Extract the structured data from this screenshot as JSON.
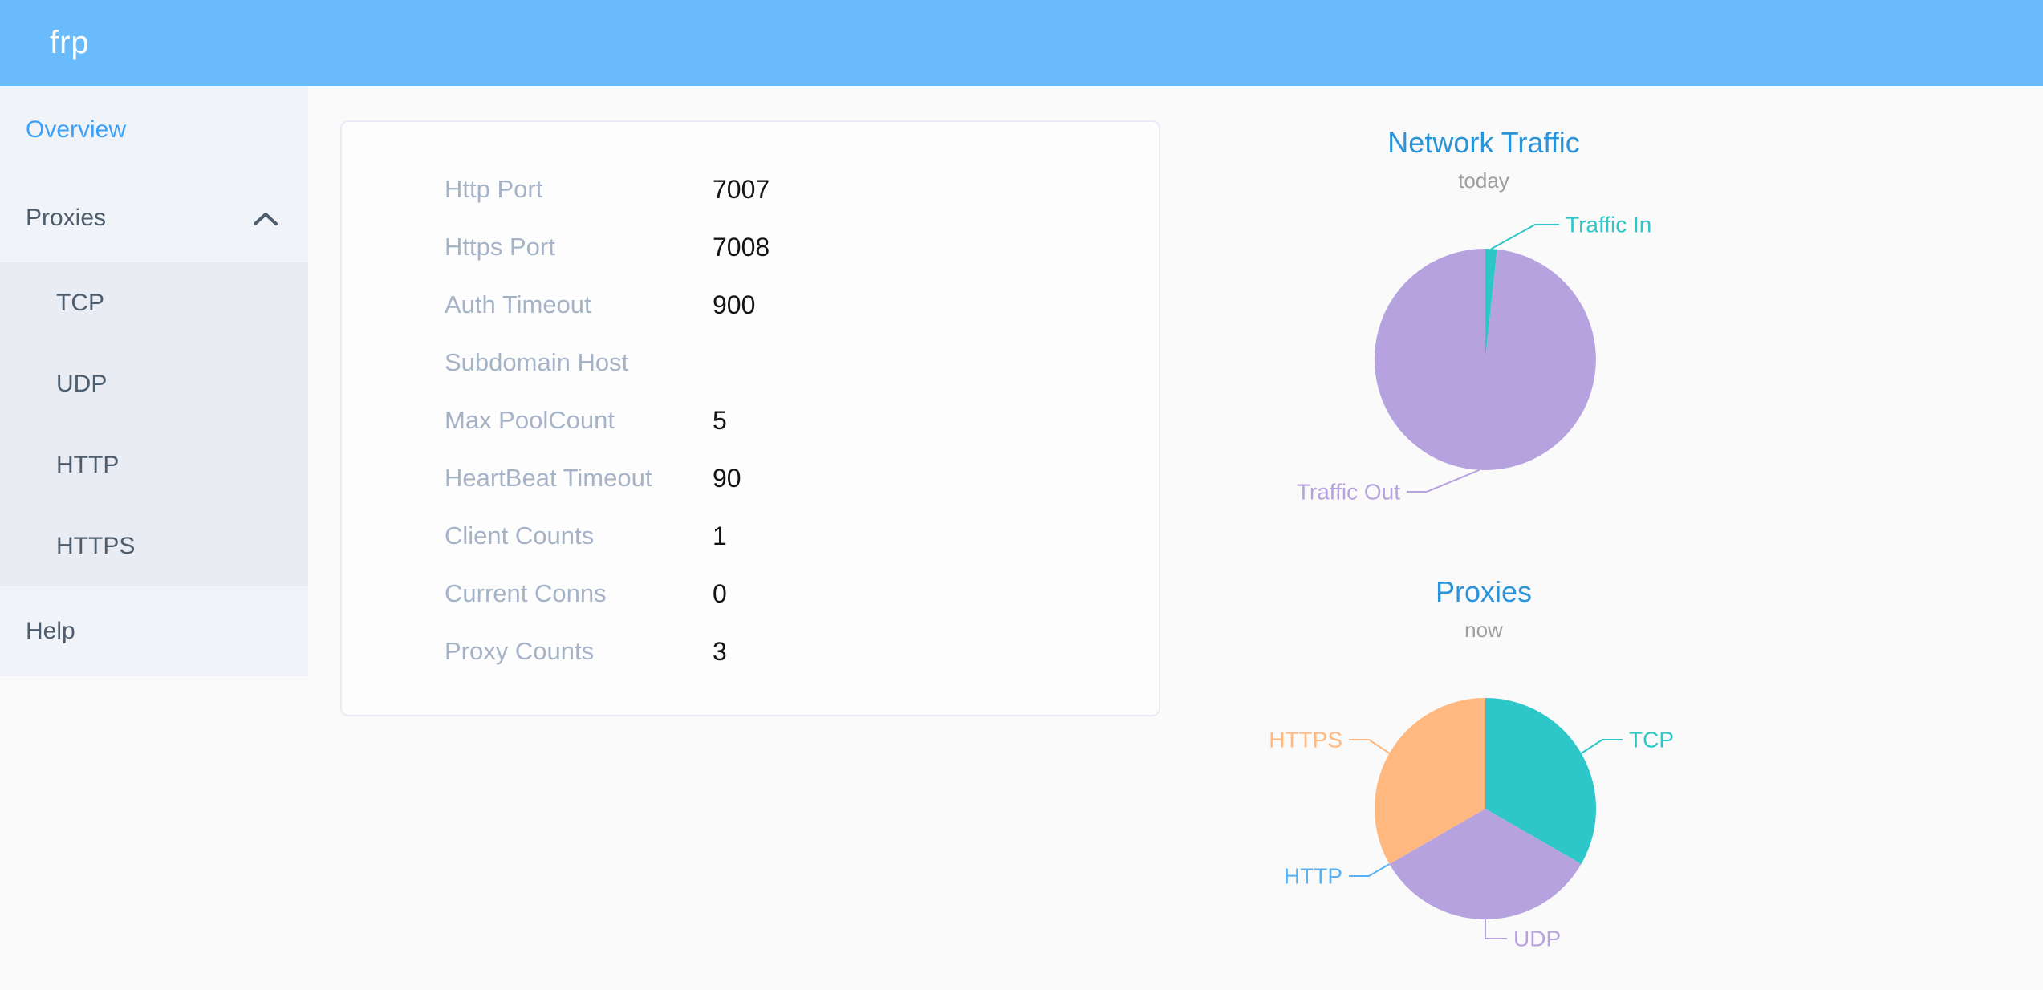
{
  "header": {
    "logo": "frp"
  },
  "sidebar": {
    "items": [
      {
        "label": "Overview",
        "active": true
      },
      {
        "label": "Proxies",
        "expanded": true,
        "children": [
          "TCP",
          "UDP",
          "HTTP",
          "HTTPS"
        ]
      },
      {
        "label": "Help"
      }
    ]
  },
  "server_info": {
    "rows": [
      {
        "label": "Http Port",
        "value": "7007"
      },
      {
        "label": "Https Port",
        "value": "7008"
      },
      {
        "label": "Auth Timeout",
        "value": "900"
      },
      {
        "label": "Subdomain Host",
        "value": ""
      },
      {
        "label": "Max PoolCount",
        "value": "5"
      },
      {
        "label": "HeartBeat Timeout",
        "value": "90"
      },
      {
        "label": "Client Counts",
        "value": "1"
      },
      {
        "label": "Current Conns",
        "value": "0"
      },
      {
        "label": "Proxy Counts",
        "value": "3"
      }
    ]
  },
  "chart_data": [
    {
      "type": "pie",
      "title": "Network Traffic",
      "subtitle": "today",
      "legend_position": "callout-labels",
      "slices": [
        {
          "name": "Traffic In",
          "value": 1.7,
          "color": "#2ec7c9"
        },
        {
          "name": "Traffic Out",
          "value": 98.3,
          "color": "#b6a2de"
        }
      ]
    },
    {
      "type": "pie",
      "title": "Proxies",
      "subtitle": "now",
      "legend_position": "callout-labels",
      "slices": [
        {
          "name": "TCP",
          "value": 1,
          "color": "#2ec7c9"
        },
        {
          "name": "UDP",
          "value": 1,
          "color": "#b6a2de"
        },
        {
          "name": "HTTP",
          "value": 0,
          "color": "#5ab1ef"
        },
        {
          "name": "HTTPS",
          "value": 1,
          "color": "#ffb980"
        }
      ]
    }
  ],
  "colors": {
    "header_bg": "#6abbfc",
    "sidebar_bg": "#f0f3f8",
    "submenu_bg": "#e9ecf2",
    "active_link": "#3da0f6",
    "chart_title": "#2d93d8",
    "palette_teal": "#2ec7c9",
    "palette_purple": "#b6a2de",
    "palette_blue": "#5ab1ef",
    "palette_orange": "#ffb980"
  }
}
